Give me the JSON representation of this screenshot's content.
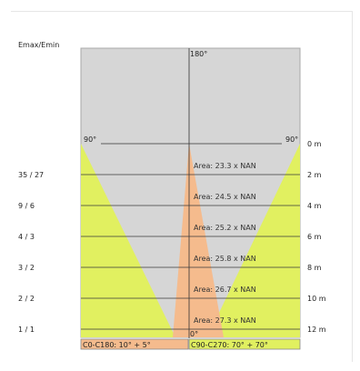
{
  "chart_data": {
    "type": "polar-spread-diagram",
    "ratio_label": "Emax/Emin",
    "angles": {
      "top": "180°",
      "left": "90°",
      "right": "90°",
      "bottom": "0°"
    },
    "distance_labels": [
      "0 m",
      "2 m",
      "4 m",
      "6 m",
      "8 m",
      "10 m",
      "12 m"
    ],
    "distances_m": [
      0,
      2,
      4,
      6,
      8,
      10,
      12
    ],
    "ratios": [
      "35 / 27",
      "9 / 6",
      "4 / 3",
      "3 / 2",
      "2 / 2",
      "1 / 1"
    ],
    "area_labels": [
      "Area: 23.3  x  NAN",
      "Area: 24.5  x  NAN",
      "Area: 25.2  x  NAN",
      "Area: 25.8  x  NAN",
      "Area: 26.7  x  NAN",
      "Area: 27.3  x  NAN"
    ],
    "legend": [
      {
        "label": "C0-C180: 10° + 5°",
        "color": "#f5bb8d"
      },
      {
        "label": "C90-C270: 70° + 70°",
        "color": "#e1f060"
      }
    ],
    "colors": {
      "background": "#d6d6d6",
      "c90_fill": "#e1f060",
      "c0_fill": "#f5bb8d"
    }
  }
}
